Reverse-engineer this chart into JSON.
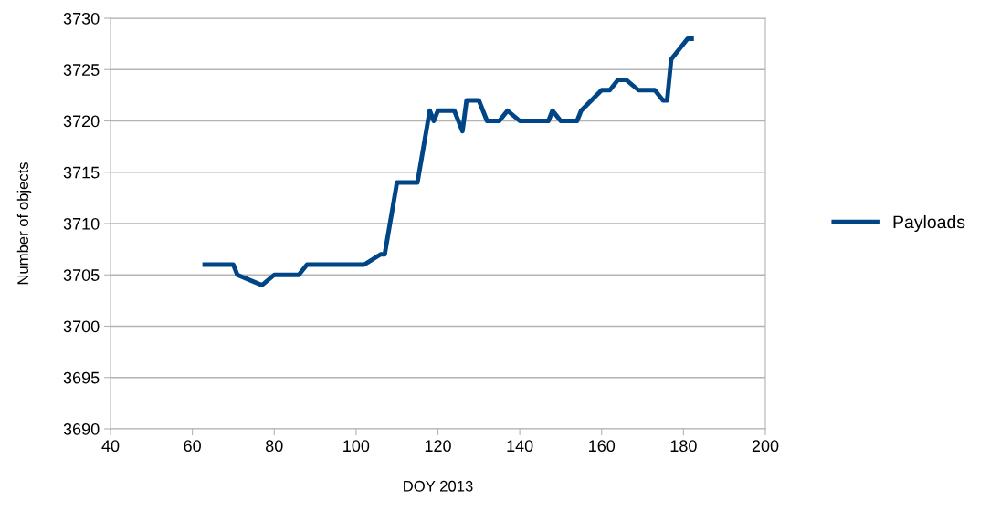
{
  "chart_data": {
    "type": "line",
    "xlabel": "DOY 2013",
    "ylabel": "Number of objects",
    "xlim": [
      40,
      200
    ],
    "xticks": [
      40,
      60,
      80,
      100,
      120,
      140,
      160,
      180,
      200
    ],
    "ylim": [
      3690,
      3730
    ],
    "yticks": [
      3690,
      3695,
      3700,
      3705,
      3710,
      3715,
      3720,
      3725,
      3730
    ],
    "grid": "y",
    "legend": "right",
    "marker": "none",
    "line_style": "solid",
    "series": [
      {
        "name": "Payloads",
        "color": "#004586",
        "x": [
          63,
          70,
          71,
          77,
          80,
          86,
          88,
          102,
          106,
          107,
          110,
          115,
          118,
          119,
          120,
          124,
          126,
          127,
          130,
          132,
          135,
          137,
          140,
          147,
          148,
          150,
          154,
          155,
          160,
          162,
          164,
          166,
          169,
          173,
          175,
          176,
          177,
          181,
          182
        ],
        "values": [
          3706,
          3706,
          3705,
          3704,
          3705,
          3705,
          3706,
          3706,
          3707,
          3707,
          3714,
          3714,
          3721,
          3720,
          3721,
          3721,
          3719,
          3722,
          3722,
          3720,
          3720,
          3721,
          3720,
          3720,
          3721,
          3720,
          3720,
          3721,
          3723,
          3723,
          3724,
          3724,
          3723,
          3723,
          3722,
          3722,
          3726,
          3728,
          3728
        ]
      }
    ]
  }
}
